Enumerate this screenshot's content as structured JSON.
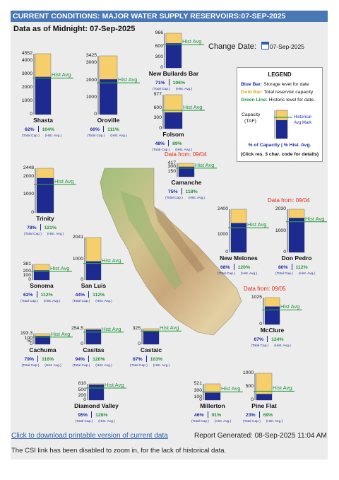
{
  "header": {
    "title": "CURRENT CONDITIONS: MAJOR WATER SUPPLY RESERVOIRS:07-SEP-2025",
    "data_as_of": "Data as of Midnight: 07-Sep-2025"
  },
  "change_date": {
    "label": "Change Date:",
    "value": "07-Sep-2025"
  },
  "legend": {
    "title": "LEGEND",
    "blue_label": "Blue Bar:",
    "blue_desc": " Storage level for date",
    "gold_label": "Gold Bar:",
    "gold_desc": " Total reservoir capacity",
    "green_label": "Green Line:",
    "green_desc": " Historic level for date.",
    "capacity_line1": "Capacity",
    "capacity_line2": "(TAF)",
    "historical_line1": "Historical",
    "historical_line2": "Avg Mark",
    "pct_line": "% of Capacity  |  % Hist. Avg.",
    "click_line": "(Click res. 3 char. code for details)"
  },
  "colors": {
    "capacity_gold": "#f6cf6a",
    "storage_blue": "#1d2a8f",
    "hist_green": "#2ca24a",
    "title_bar": "#4a78b5",
    "data_from_red": "#e12a1b"
  },
  "labels": {
    "hist_avg": "Hist Avg",
    "total_cap": "(Total Cap.)",
    "hist_avg_small": "(Hist. Avg.)"
  },
  "chart_data": {
    "type": "bar",
    "units": "TAF",
    "reservoirs": [
      {
        "name": "Shasta",
        "capacity": 4552,
        "ticks": [
          "4552",
          "4000",
          "3000",
          "2000",
          "1000",
          "0"
        ],
        "pct_capacity": "62%",
        "pct_hist_avg": "104%"
      },
      {
        "name": "Oroville",
        "capacity": 3425,
        "ticks": [
          "3425",
          "3000",
          "2000",
          "1000",
          "0"
        ],
        "pct_capacity": "60%",
        "pct_hist_avg": "111%"
      },
      {
        "name": "New Bullards Bar",
        "capacity": 966,
        "ticks": [
          "966",
          "600",
          "300",
          "0"
        ],
        "pct_capacity": "71%",
        "pct_hist_avg": "106%"
      },
      {
        "name": "Folsom",
        "capacity": 977,
        "ticks": [
          "977",
          "600",
          "300",
          "0"
        ],
        "pct_capacity": "48%",
        "pct_hist_avg": "89%"
      },
      {
        "name": "Camanche",
        "capacity": 417,
        "ticks": [
          "417",
          "300",
          "150"
        ],
        "pct_capacity": "75%",
        "pct_hist_avg": "118%",
        "data_from": "Data from: 09/04"
      },
      {
        "name": "Trinity",
        "capacity": 2448,
        "ticks": [
          "2448",
          "2000",
          "1000",
          "0"
        ],
        "pct_capacity": "78%",
        "pct_hist_avg": "121%"
      },
      {
        "name": "New Melones",
        "capacity": 2400,
        "ticks": [
          "2400",
          "1000",
          "0"
        ],
        "pct_capacity": "68%",
        "pct_hist_avg": "120%"
      },
      {
        "name": "Don Pedro",
        "capacity": 2030,
        "ticks": [
          "2030",
          "1000",
          "0"
        ],
        "pct_capacity": "80%",
        "pct_hist_avg": "112%",
        "data_from": "Data from: 09/04"
      },
      {
        "name": "Sonoma",
        "capacity": 381,
        "ticks": [
          "381",
          "200",
          "100",
          "0"
        ],
        "pct_capacity": "62%",
        "pct_hist_avg": "112%"
      },
      {
        "name": "San Luis",
        "capacity": 2041,
        "ticks": [
          "2041",
          "1000",
          "0"
        ],
        "pct_capacity": "44%",
        "pct_hist_avg": "112%"
      },
      {
        "name": "McClure",
        "capacity": 1025,
        "ticks": [
          "1025",
          "0"
        ],
        "pct_capacity": "67%",
        "pct_hist_avg": "124%",
        "data_from": "Data from: 09/05"
      },
      {
        "name": "Cachuma",
        "capacity": 193.3,
        "ticks": [
          "193.3",
          "100",
          "50",
          "0"
        ],
        "pct_capacity": "79%",
        "pct_hist_avg": "116%"
      },
      {
        "name": "Casitas",
        "capacity": 254.5,
        "ticks": [
          "254.5",
          "0"
        ],
        "pct_capacity": "94%",
        "pct_hist_avg": "120%"
      },
      {
        "name": "Castaic",
        "capacity": 325,
        "ticks": [
          "325",
          "0"
        ],
        "pct_capacity": "87%",
        "pct_hist_avg": "103%"
      },
      {
        "name": "Diamond Valley",
        "capacity": 810,
        "ticks": [
          "810",
          "500",
          "200",
          "0"
        ],
        "pct_capacity": "95%",
        "pct_hist_avg": "128%"
      },
      {
        "name": "Millerton",
        "capacity": 521,
        "ticks": [
          "521",
          "300",
          "100",
          "0"
        ],
        "pct_capacity": "46%",
        "pct_hist_avg": "91%"
      },
      {
        "name": "Pine Flat",
        "capacity": 1000,
        "ticks": [
          "1000",
          "500",
          "0"
        ],
        "pct_capacity": "23%",
        "pct_hist_avg": "69%"
      }
    ]
  },
  "footer": {
    "download_link": "Click to download printable version of current data",
    "report_generated": "Report Generated: 08-Sep-2025 11:04 AM",
    "note": "The CSI link has been disabled to zoom in, for the lack of historical data."
  }
}
